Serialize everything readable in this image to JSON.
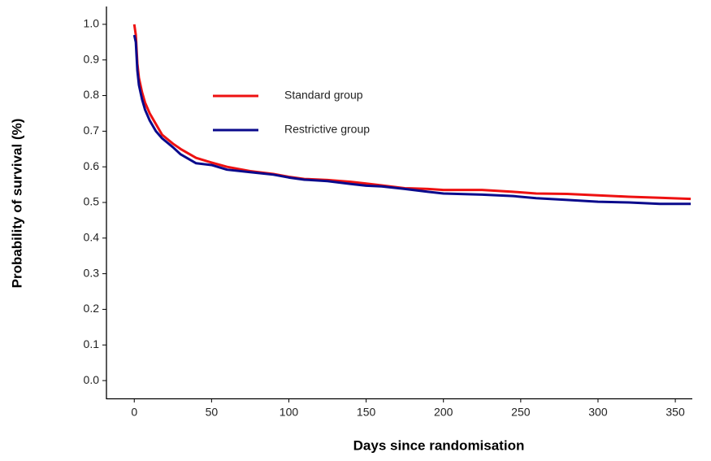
{
  "chart_data": {
    "type": "line",
    "x_label": "Days since randomisation",
    "y_label": "Probability of survival (%)",
    "x": [
      0,
      1,
      2,
      3,
      4,
      5,
      7,
      10,
      14,
      18,
      25,
      30,
      40,
      50,
      60,
      75,
      90,
      100,
      110,
      125,
      140,
      150,
      160,
      175,
      190,
      200,
      225,
      245,
      260,
      280,
      300,
      320,
      340,
      360
    ],
    "series": [
      {
        "name": "Standard group",
        "color": "#ee1111",
        "values": [
          1.0,
          0.97,
          0.89,
          0.85,
          0.83,
          0.81,
          0.78,
          0.75,
          0.72,
          0.69,
          0.665,
          0.65,
          0.625,
          0.612,
          0.6,
          0.588,
          0.58,
          0.572,
          0.566,
          0.563,
          0.558,
          0.553,
          0.548,
          0.54,
          0.538,
          0.535,
          0.535,
          0.53,
          0.525,
          0.524,
          0.52,
          0.516,
          0.513,
          0.51
        ]
      },
      {
        "name": "Restrictive group",
        "color": "#0a0a8c",
        "values": [
          0.97,
          0.95,
          0.87,
          0.83,
          0.81,
          0.79,
          0.76,
          0.73,
          0.7,
          0.68,
          0.655,
          0.635,
          0.61,
          0.605,
          0.592,
          0.585,
          0.578,
          0.57,
          0.564,
          0.56,
          0.552,
          0.547,
          0.545,
          0.538,
          0.53,
          0.525,
          0.522,
          0.518,
          0.512,
          0.507,
          0.502,
          0.5,
          0.496,
          0.496
        ]
      }
    ],
    "xlim": [
      -18,
      361
    ],
    "ylim": [
      -0.05,
      1.05
    ],
    "xticks": [
      0,
      50,
      100,
      150,
      200,
      250,
      300,
      350
    ],
    "yticks": [
      {
        "value": 0,
        "label": "0.0"
      },
      0.1,
      0.2,
      0.3,
      0.4,
      0.5,
      0.6,
      0.7,
      0.8,
      0.9,
      {
        "value": 1,
        "label": "1.0"
      }
    ],
    "grid": false,
    "legend": "upper-left"
  }
}
